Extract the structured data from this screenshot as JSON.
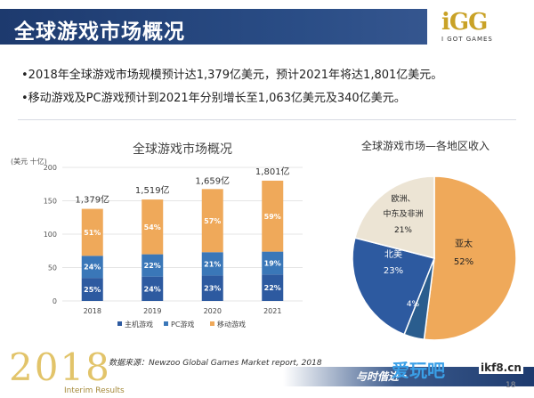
{
  "header": {
    "title": "全球游戏市场概况"
  },
  "logo": {
    "main": "iGG",
    "sub": "I GOT GAMES"
  },
  "bullets": [
    "•2018年全球游戏市场规模预计达1,379亿美元，预计2021年将达1,801亿美元。",
    "•移动游戏及PC游戏预计到2021年分别增长至1,063亿美元及340亿美元。"
  ],
  "colors": {
    "console": "#2d5aa0",
    "pc": "#3a77b8",
    "mobile": "#efa95a",
    "header": "#1d3a6e"
  },
  "chart_data": [
    {
      "type": "bar",
      "stacked": true,
      "title": "全球游戏市场概况",
      "ylabel": "(美元 十亿)",
      "ylim": [
        0,
        200
      ],
      "yticks": [
        0,
        50,
        100,
        150,
        200
      ],
      "categories": [
        "2018",
        "2019",
        "2020",
        "2021"
      ],
      "totals": [
        137.9,
        151.9,
        165.9,
        180.1
      ],
      "total_labels": [
        "1,379亿",
        "1,519亿",
        "1,659亿",
        "1,801亿"
      ],
      "series": [
        {
          "name": "主机游戏",
          "percent": [
            25,
            24,
            23,
            22
          ],
          "labels": [
            "25%",
            "24%",
            "23%",
            "22%"
          ]
        },
        {
          "name": "PC游戏",
          "percent": [
            24,
            22,
            21,
            19
          ],
          "labels": [
            "24%",
            "22%",
            "21%",
            "19%"
          ]
        },
        {
          "name": "移动游戏",
          "percent": [
            51,
            54,
            57,
            59
          ],
          "labels": [
            "51%",
            "54%",
            "57%",
            "59%"
          ]
        }
      ],
      "legend": "bottom"
    },
    {
      "type": "pie",
      "title": "全球游戏市场—各地区收入",
      "slices": [
        {
          "name": "亚太",
          "value": 52,
          "label": "52%"
        },
        {
          "name": "拉美",
          "value": 4,
          "label": "4%"
        },
        {
          "name": "北美",
          "value": 23,
          "label": "23%"
        },
        {
          "name": "欧洲、中东及非洲",
          "value": 21,
          "label": "21%"
        }
      ]
    }
  ],
  "footer": {
    "year": "2018",
    "sub": "Interim Results",
    "source": "数据来源：Newzoo Global Games Market report, 2018",
    "slogan": "与时偕进・",
    "watermark_cn": "爱玩吧",
    "watermark_url": "ikf8.cn",
    "page": "18"
  }
}
